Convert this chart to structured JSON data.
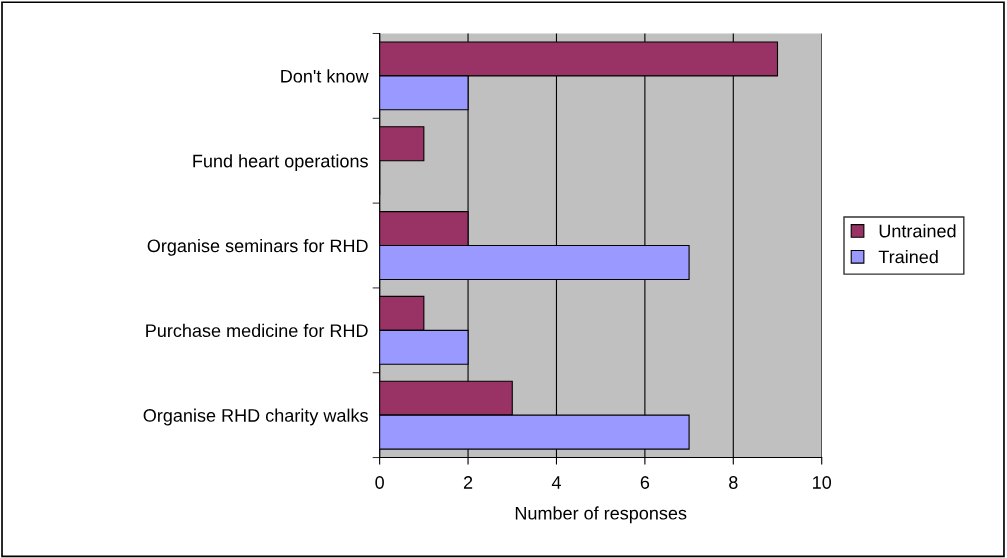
{
  "chart_data": {
    "type": "bar",
    "orientation": "horizontal",
    "xlabel": "Number of responses",
    "categories": [
      "Don't know",
      "Fund heart operations",
      "Organise seminars for RHD",
      "Purchase medicine for RHD",
      "Organise RHD charity walks"
    ],
    "series": [
      {
        "name": "Untrained",
        "color": "#993366",
        "values": [
          9,
          1,
          2,
          1,
          3
        ]
      },
      {
        "name": "Trained",
        "color": "#9999ff",
        "values": [
          2,
          0,
          7,
          2,
          7
        ]
      }
    ],
    "xlim": [
      0,
      10
    ],
    "xticks": [
      0,
      2,
      4,
      6,
      8,
      10
    ],
    "grid": "x",
    "legend": "right"
  }
}
